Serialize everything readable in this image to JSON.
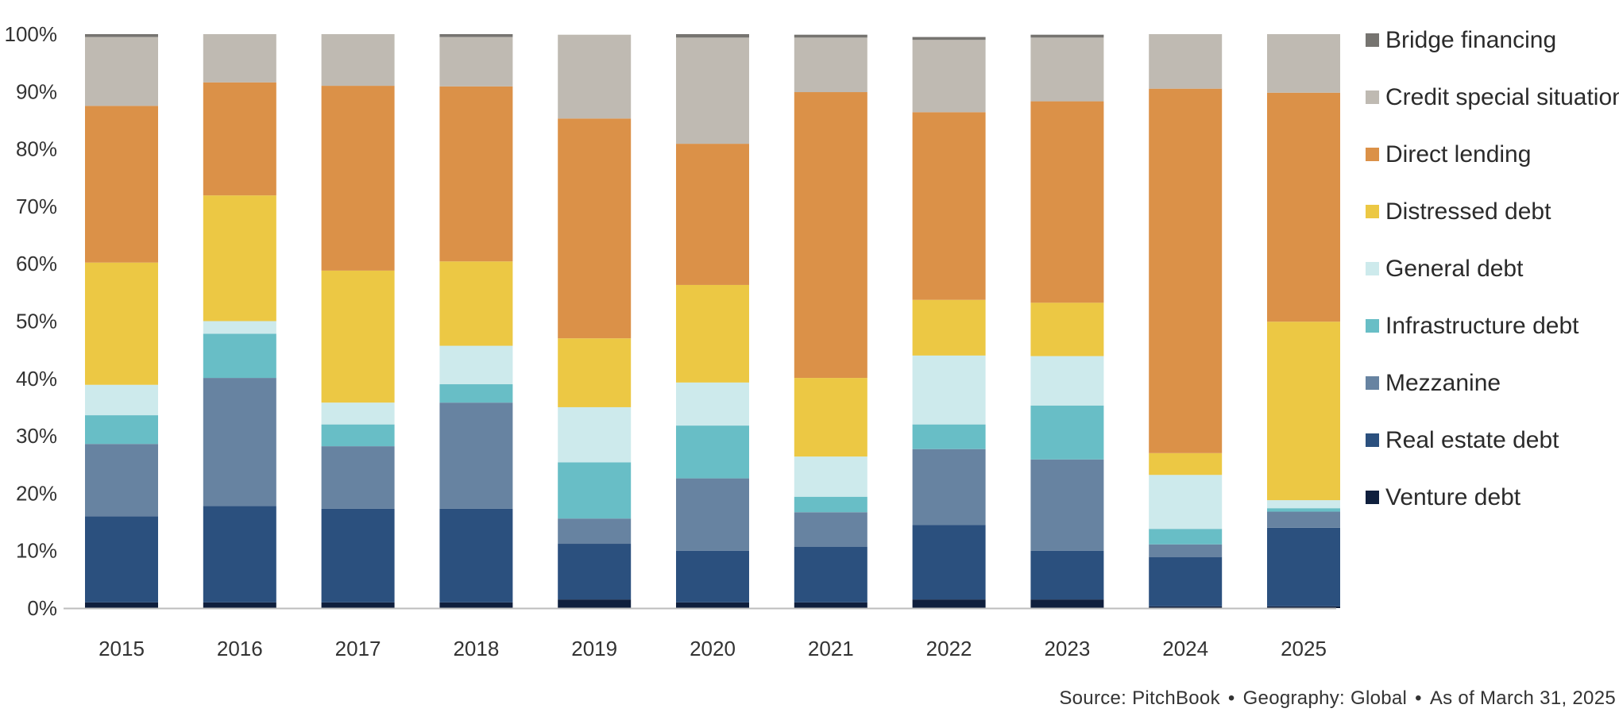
{
  "chart_data": {
    "type": "bar",
    "stacked": true,
    "normalized": true,
    "title": "",
    "xlabel": "",
    "ylabel": "",
    "ylim": [
      0,
      100
    ],
    "y_ticks": [
      "0%",
      "10%",
      "20%",
      "30%",
      "40%",
      "50%",
      "60%",
      "70%",
      "80%",
      "90%",
      "100%"
    ],
    "categories": [
      "2015",
      "2016",
      "2017",
      "2018",
      "2019",
      "2020",
      "2021",
      "2022",
      "2023",
      "2024",
      "2025"
    ],
    "legend_position": "right",
    "grid": false,
    "series": [
      {
        "name": "Venture debt",
        "color": "#0f1f3d",
        "values": [
          1.0,
          1.0,
          1.0,
          1.0,
          1.5,
          1.0,
          1.0,
          1.5,
          1.5,
          0.3,
          0.3
        ]
      },
      {
        "name": "Real estate debt",
        "color": "#2b507e",
        "values": [
          15.0,
          16.8,
          16.3,
          16.3,
          9.7,
          9.0,
          9.7,
          13.0,
          8.5,
          8.6,
          13.7
        ]
      },
      {
        "name": "Mezzanine",
        "color": "#6783a1",
        "values": [
          12.6,
          22.3,
          10.9,
          18.5,
          4.4,
          12.6,
          6.0,
          13.2,
          15.9,
          2.2,
          2.8
        ]
      },
      {
        "name": "Infrastructure debt",
        "color": "#68bec6",
        "values": [
          5.0,
          7.7,
          3.8,
          3.2,
          9.8,
          9.2,
          2.7,
          4.3,
          9.4,
          2.7,
          0.6
        ]
      },
      {
        "name": "General debt",
        "color": "#cdeaec",
        "values": [
          5.3,
          2.2,
          3.8,
          6.7,
          9.6,
          7.5,
          7.0,
          12.0,
          8.6,
          9.4,
          1.4
        ]
      },
      {
        "name": "Distressed debt",
        "color": "#ecc844",
        "values": [
          21.3,
          21.9,
          23.0,
          14.7,
          12.0,
          17.0,
          13.7,
          9.7,
          9.3,
          3.8,
          31.1
        ]
      },
      {
        "name": "Direct lending",
        "color": "#db9148",
        "values": [
          27.3,
          19.7,
          32.2,
          30.5,
          38.3,
          24.6,
          49.8,
          32.7,
          35.1,
          63.5,
          39.9
        ]
      },
      {
        "name": "Credit special situations",
        "color": "#bfbab2",
        "values": [
          12.0,
          8.4,
          9.0,
          8.6,
          14.6,
          18.5,
          9.5,
          12.6,
          11.1,
          9.5,
          10.2
        ]
      },
      {
        "name": "Bridge financing",
        "color": "#767470",
        "values": [
          0.5,
          0.0,
          0.0,
          0.5,
          0.0,
          0.6,
          0.5,
          0.5,
          0.5,
          0.0,
          0.0
        ]
      }
    ]
  },
  "footer": {
    "source": "Source: PitchBook",
    "geography": "Geography: Global",
    "as_of": "As of March 31, 2025",
    "separator": "•"
  }
}
